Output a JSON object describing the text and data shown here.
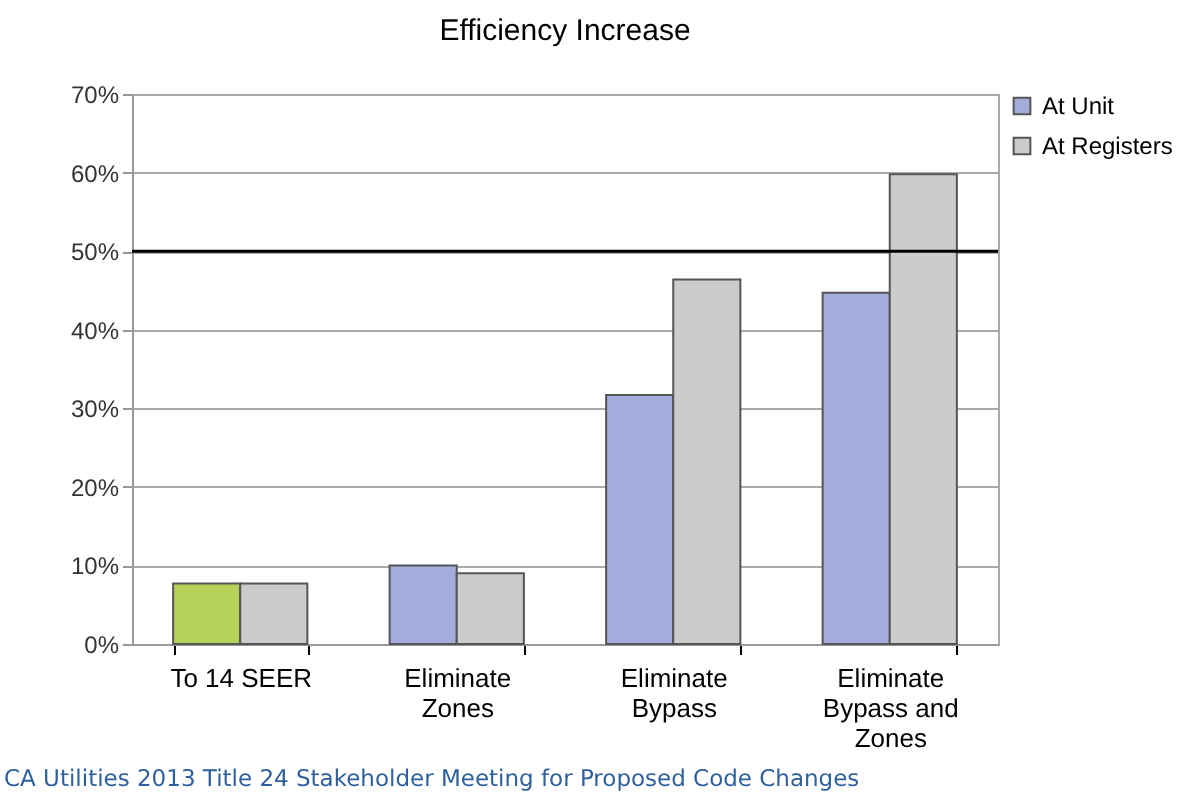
{
  "chart_data": {
    "type": "bar",
    "title": "Efficiency Increase",
    "categories": [
      "To 14 SEER",
      "Eliminate Zones",
      "Eliminate Bypass",
      "Eliminate Bypass and Zones"
    ],
    "series": [
      {
        "name": "At Unit",
        "color": "#a3addb",
        "colors": [
          "#b5d15a",
          "#a3addb",
          "#a3addb",
          "#a3addb"
        ],
        "values": [
          7.7,
          10.0,
          31.7,
          44.7
        ]
      },
      {
        "name": "At Registers",
        "color": "#cccccc",
        "values": [
          7.7,
          9.0,
          46.4,
          59.8
        ]
      }
    ],
    "ylim": [
      0,
      70
    ],
    "yticks": [
      {
        "value": 0,
        "label": "0%"
      },
      {
        "value": 10,
        "label": "10%"
      },
      {
        "value": 20,
        "label": "20%"
      },
      {
        "value": 30,
        "label": "30%"
      },
      {
        "value": 40,
        "label": "40%"
      },
      {
        "value": 50,
        "label": "50%"
      },
      {
        "value": 60,
        "label": "60%"
      },
      {
        "value": 70,
        "label": "70%"
      }
    ],
    "ref_lines": [
      {
        "axis": "y",
        "value": 50,
        "color": "#000000"
      }
    ],
    "grid": "y",
    "legend": "right",
    "annotations": [
      "CA Utilities 2013 Title 24 Stakeholder Meeting for Proposed Code Changes"
    ]
  }
}
